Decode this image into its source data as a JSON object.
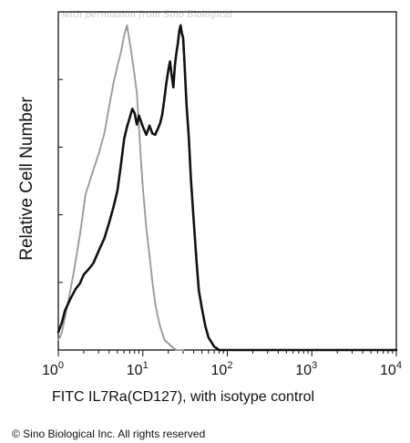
{
  "watermark": "with permission from Sino Biological",
  "copyright": "© Sino Biological Inc. All rights reserved",
  "chart_data": {
    "type": "line",
    "xscale": "log",
    "xlim": [
      1,
      10000
    ],
    "ylim": [
      0,
      100
    ],
    "xlabel": "FITC IL7Ra(CD127), with isotype control",
    "ylabel": "Relative Cell Number",
    "xticks": [
      {
        "base": "10",
        "exp": "0",
        "value": 1
      },
      {
        "base": "10",
        "exp": "1",
        "value": 10
      },
      {
        "base": "10",
        "exp": "2",
        "value": 100
      },
      {
        "base": "10",
        "exp": "3",
        "value": 1000
      },
      {
        "base": "10",
        "exp": "4",
        "value": 10000
      }
    ],
    "grid": false,
    "series": [
      {
        "style": "dotted",
        "color": "#9a9a9a",
        "x": [
          1.0,
          1.1,
          1.3,
          1.5,
          1.8,
          2.1,
          2.5,
          3.0,
          3.5,
          4.0,
          4.5,
          5.0,
          5.5,
          6.0,
          6.5,
          7.0,
          7.5,
          8.0,
          8.5,
          9.0,
          9.5,
          10.0,
          11.0,
          12.0,
          13.0,
          14.0,
          15.0,
          16.0,
          17.0,
          18.0,
          20.0,
          22.0,
          25.0,
          30.0
        ],
        "y": [
          3,
          5,
          14,
          22,
          34,
          46,
          52,
          58,
          64,
          72,
          79,
          84,
          88,
          93,
          96,
          91,
          86,
          81,
          76,
          66,
          56,
          48,
          36,
          28,
          20,
          14,
          10,
          7,
          5,
          3,
          2,
          1,
          0,
          0
        ]
      },
      {
        "style": "solid",
        "color": "#111111",
        "x": [
          1.0,
          1.1,
          1.2,
          1.4,
          1.6,
          1.8,
          2.0,
          2.3,
          2.6,
          3.0,
          3.5,
          4.0,
          4.5,
          5.0,
          5.5,
          6.0,
          6.5,
          7.0,
          7.5,
          8.0,
          8.5,
          9.0,
          10.0,
          11.0,
          12.0,
          13.0,
          14.0,
          15.0,
          16.0,
          17.0,
          18.0,
          19.0,
          20.0,
          21.0,
          22.0,
          23.0,
          24.0,
          25.0,
          26.0,
          27.0,
          28.0,
          29.0,
          30.0,
          31.0,
          32.0,
          33.0,
          35.0,
          37.0,
          40.0,
          43.0,
          46.0,
          50.0,
          55.0,
          60.0,
          65.0,
          70.0,
          75.0,
          80.0,
          90.0,
          100.0,
          150.0,
          300.0,
          1000.0,
          3000.0,
          10000.0
        ],
        "y": [
          5,
          8,
          12,
          15,
          18,
          20,
          22,
          24,
          26,
          29,
          33,
          38,
          42,
          47,
          55,
          62,
          66,
          69,
          71,
          70,
          67,
          69,
          66,
          64,
          66,
          64,
          64,
          65,
          67,
          70,
          74,
          79,
          83,
          85,
          81,
          78,
          84,
          88,
          91,
          94,
          96,
          94,
          92,
          86,
          79,
          72,
          63,
          51,
          38,
          27,
          18,
          12,
          7,
          4,
          2,
          1,
          0.5,
          0,
          0,
          0,
          0,
          0,
          0,
          0,
          0
        ]
      }
    ]
  }
}
